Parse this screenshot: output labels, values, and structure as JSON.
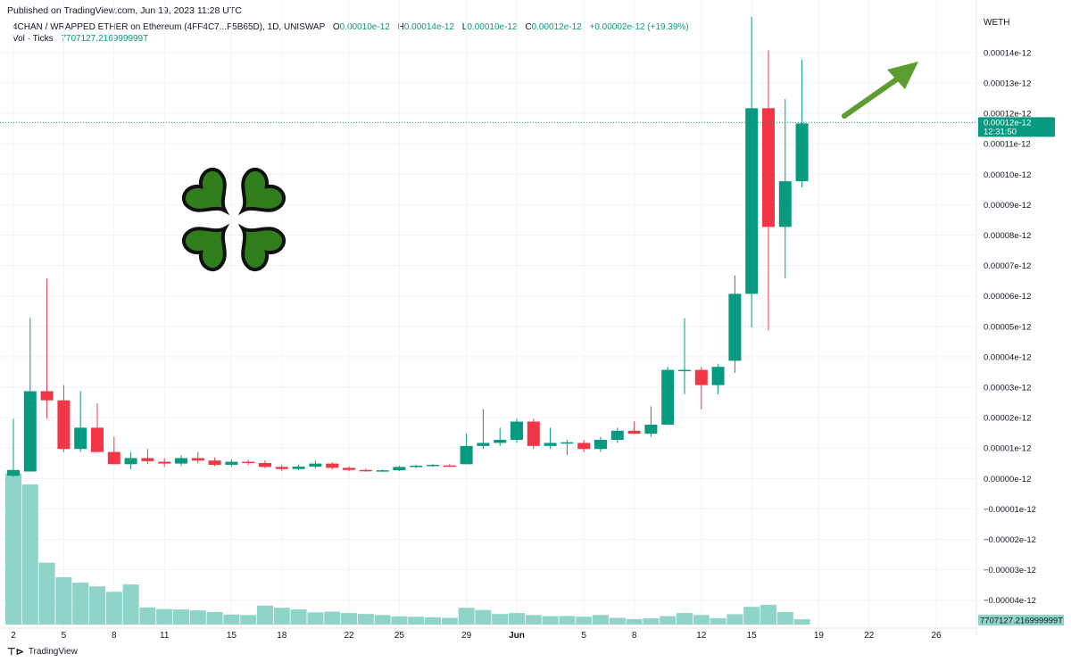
{
  "header": {
    "published": "Published on TradingView.com, Jun 19, 2023 11:28 UTC",
    "symbol": "4CHAN / WRAPPED ETHER on Ethereum (4FF4C7...F5B65D), 1D, UNISWAP",
    "o_label": "O",
    "o_value": "0.00010e-12",
    "h_label": "H",
    "h_value": "0.00014e-12",
    "l_label": "L",
    "l_value": "0.00010e-12",
    "c_label": "C",
    "c_value": "0.00012e-12",
    "change": "+0.00002e-12 (+19.39%)",
    "vol_label": "Vol · Ticks",
    "vol_value": "7707127.216999999T"
  },
  "footer": {
    "brand": "TradingView"
  },
  "chart_data": {
    "type": "candlestick",
    "quote_currency": "WETH",
    "y_unit": "e-12",
    "ylim": [
      -4.8e-05,
      0.000152
    ],
    "yticks": [
      {
        "value": 0.00014,
        "label": "0.00014e-12"
      },
      {
        "value": 0.00013,
        "label": "0.00013e-12"
      },
      {
        "value": 0.00012,
        "label": "0.00012e-12"
      },
      {
        "value": 0.00011,
        "label": "0.00011e-12"
      },
      {
        "value": 0.0001,
        "label": "0.00010e-12"
      },
      {
        "value": 9e-05,
        "label": "0.00009e-12"
      },
      {
        "value": 8e-05,
        "label": "0.00008e-12"
      },
      {
        "value": 7e-05,
        "label": "0.00007e-12"
      },
      {
        "value": 6e-05,
        "label": "0.00006e-12"
      },
      {
        "value": 5e-05,
        "label": "0.00005e-12"
      },
      {
        "value": 4e-05,
        "label": "0.00004e-12"
      },
      {
        "value": 3e-05,
        "label": "0.00003e-12"
      },
      {
        "value": 2e-05,
        "label": "0.00002e-12"
      },
      {
        "value": 1e-05,
        "label": "0.00001e-12"
      },
      {
        "value": 0.0,
        "label": "0.00000e-12"
      },
      {
        "value": -1e-05,
        "label": "−0.00001e-12"
      },
      {
        "value": -2e-05,
        "label": "−0.00002e-12"
      },
      {
        "value": -3e-05,
        "label": "−0.00003e-12"
      },
      {
        "value": -4e-05,
        "label": "−0.00004e-12"
      }
    ],
    "xticks": [
      {
        "index": 0,
        "label": "2"
      },
      {
        "index": 3,
        "label": "5"
      },
      {
        "index": 6,
        "label": "8"
      },
      {
        "index": 9,
        "label": "11"
      },
      {
        "index": 13,
        "label": "15"
      },
      {
        "index": 16,
        "label": "18"
      },
      {
        "index": 20,
        "label": "22"
      },
      {
        "index": 23,
        "label": "25"
      },
      {
        "index": 27,
        "label": "29"
      },
      {
        "index": 30,
        "label": "Jun"
      },
      {
        "index": 34,
        "label": "5"
      },
      {
        "index": 37,
        "label": "8"
      },
      {
        "index": 41,
        "label": "12"
      },
      {
        "index": 44,
        "label": "15"
      },
      {
        "index": 48,
        "label": "19"
      },
      {
        "index": 51,
        "label": "22"
      },
      {
        "index": 55,
        "label": "26"
      }
    ],
    "last_price_label": "0.00012e-12",
    "last_price_value": 0.000117,
    "countdown": "12:31:50",
    "volume_label": "7707127.216999999T",
    "candles": [
      {
        "o": 9e-07,
        "h": 1.97e-05,
        "l": 6e-07,
        "c": 2.8e-06
      },
      {
        "o": 2.3e-06,
        "h": 5.28e-05,
        "l": 2.3e-06,
        "c": 2.87e-05
      },
      {
        "o": 2.87e-05,
        "h": 6.57e-05,
        "l": 1.97e-05,
        "c": 2.57e-05
      },
      {
        "o": 2.57e-05,
        "h": 3.07e-05,
        "l": 8.7e-06,
        "c": 9.7e-06
      },
      {
        "o": 9.7e-06,
        "h": 2.87e-05,
        "l": 8.7e-06,
        "c": 1.67e-05
      },
      {
        "o": 1.67e-05,
        "h": 2.47e-05,
        "l": 8.7e-06,
        "c": 8.7e-06
      },
      {
        "o": 8.7e-06,
        "h": 1.37e-05,
        "l": 4.7e-06,
        "c": 4.7e-06
      },
      {
        "o": 4.7e-06,
        "h": 8.7e-06,
        "l": 3e-06,
        "c": 6.7e-06
      },
      {
        "o": 6.7e-06,
        "h": 9.7e-06,
        "l": 4.7e-06,
        "c": 5.7e-06
      },
      {
        "o": 5.5e-06,
        "h": 6.7e-06,
        "l": 3.8e-06,
        "c": 4.9e-06
      },
      {
        "o": 4.9e-06,
        "h": 7.7e-06,
        "l": 4e-06,
        "c": 6.7e-06
      },
      {
        "o": 6.7e-06,
        "h": 8.7e-06,
        "l": 5e-06,
        "c": 5.9e-06
      },
      {
        "o": 5.9e-06,
        "h": 6.9e-06,
        "l": 4e-06,
        "c": 4.5e-06
      },
      {
        "o": 4.5e-06,
        "h": 6.3e-06,
        "l": 3.8e-06,
        "c": 5.5e-06
      },
      {
        "o": 5.5e-06,
        "h": 6.2e-06,
        "l": 4.4e-06,
        "c": 5.1e-06
      },
      {
        "o": 5.1e-06,
        "h": 6e-06,
        "l": 3.4e-06,
        "c": 3.8e-06
      },
      {
        "o": 3.8e-06,
        "h": 4.5e-06,
        "l": 2.4e-06,
        "c": 3.1e-06
      },
      {
        "o": 3.1e-06,
        "h": 4.6e-06,
        "l": 2.7e-06,
        "c": 3.9e-06
      },
      {
        "o": 3.9e-06,
        "h": 5.8e-06,
        "l": 3.3e-06,
        "c": 4.9e-06
      },
      {
        "o": 4.9e-06,
        "h": 5.4e-06,
        "l": 3e-06,
        "c": 3.5e-06
      },
      {
        "o": 3.5e-06,
        "h": 4e-06,
        "l": 2.4e-06,
        "c": 2.8e-06
      },
      {
        "o": 2.8e-06,
        "h": 3.3e-06,
        "l": 2.2e-06,
        "c": 2.5e-06
      },
      {
        "o": 2.5e-06,
        "h": 3e-06,
        "l": 2.2e-06,
        "c": 2.7e-06
      },
      {
        "o": 2.7e-06,
        "h": 4.2e-06,
        "l": 2.4e-06,
        "c": 3.8e-06
      },
      {
        "o": 3.8e-06,
        "h": 4.5e-06,
        "l": 3.4e-06,
        "c": 4.2e-06
      },
      {
        "o": 4.2e-06,
        "h": 4.8e-06,
        "l": 3.8e-06,
        "c": 4.5e-06
      },
      {
        "o": 4.3e-06,
        "h": 4.7e-06,
        "l": 3.9e-06,
        "c": 4.1e-06
      },
      {
        "o": 4.7e-06,
        "h": 1.48e-05,
        "l": 4.6e-06,
        "c": 1.07e-05
      },
      {
        "o": 1.07e-05,
        "h": 2.28e-05,
        "l": 9.7e-06,
        "c": 1.17e-05
      },
      {
        "o": 1.17e-05,
        "h": 1.67e-05,
        "l": 1.07e-05,
        "c": 1.27e-05
      },
      {
        "o": 1.27e-05,
        "h": 1.97e-05,
        "l": 1.17e-05,
        "c": 1.87e-05
      },
      {
        "o": 1.87e-05,
        "h": 1.97e-05,
        "l": 9.7e-06,
        "c": 1.07e-05
      },
      {
        "o": 1.07e-05,
        "h": 1.67e-05,
        "l": 9.7e-06,
        "c": 1.17e-05
      },
      {
        "o": 1.15e-05,
        "h": 1.27e-05,
        "l": 7.7e-06,
        "c": 1.19e-05
      },
      {
        "o": 1.17e-05,
        "h": 1.27e-05,
        "l": 8.7e-06,
        "c": 9.7e-06
      },
      {
        "o": 9.7e-06,
        "h": 1.37e-05,
        "l": 8.7e-06,
        "c": 1.27e-05
      },
      {
        "o": 1.27e-05,
        "h": 1.67e-05,
        "l": 1.17e-05,
        "c": 1.57e-05
      },
      {
        "o": 1.57e-05,
        "h": 1.87e-05,
        "l": 1.47e-05,
        "c": 1.47e-05
      },
      {
        "o": 1.47e-05,
        "h": 2.37e-05,
        "l": 1.37e-05,
        "c": 1.77e-05
      },
      {
        "o": 1.77e-05,
        "h": 3.67e-05,
        "l": 1.77e-05,
        "c": 3.57e-05
      },
      {
        "o": 3.57e-05,
        "h": 5.27e-05,
        "l": 2.77e-05,
        "c": 3.57e-05
      },
      {
        "o": 3.57e-05,
        "h": 3.67e-05,
        "l": 2.27e-05,
        "c": 3.07e-05
      },
      {
        "o": 3.07e-05,
        "h": 3.77e-05,
        "l": 2.77e-05,
        "c": 3.67e-05
      },
      {
        "o": 3.87e-05,
        "h": 6.67e-05,
        "l": 3.47e-05,
        "c": 6.07e-05
      },
      {
        "o": 6.07e-05,
        "h": 0.0001517,
        "l": 4.97e-05,
        "c": 0.0001217
      },
      {
        "o": 0.0001217,
        "h": 0.0001407,
        "l": 4.87e-05,
        "c": 8.27e-05
      },
      {
        "o": 8.27e-05,
        "h": 0.0001247,
        "l": 6.57e-05,
        "c": 9.77e-05
      },
      {
        "o": 9.77e-05,
        "h": 0.0001377,
        "l": 9.57e-05,
        "c": 0.0001167
      }
    ],
    "volume": [
      0.83,
      0.77,
      0.34,
      0.26,
      0.23,
      0.21,
      0.18,
      0.22,
      0.094,
      0.085,
      0.083,
      0.078,
      0.069,
      0.055,
      0.052,
      0.104,
      0.092,
      0.083,
      0.067,
      0.071,
      0.063,
      0.058,
      0.052,
      0.045,
      0.043,
      0.04,
      0.037,
      0.092,
      0.08,
      0.058,
      0.063,
      0.052,
      0.046,
      0.047,
      0.043,
      0.052,
      0.037,
      0.03,
      0.034,
      0.046,
      0.063,
      0.052,
      0.035,
      0.057,
      0.097,
      0.109,
      0.069,
      0.029
    ],
    "colors": {
      "up": "#089981",
      "down": "#f23645",
      "up_volume": "#8ed4c9",
      "down_volume": "#8ed4c9",
      "grid": "#f0f3fa",
      "arrow": "#5d9c2f",
      "clover": "#2f7d1d"
    }
  }
}
